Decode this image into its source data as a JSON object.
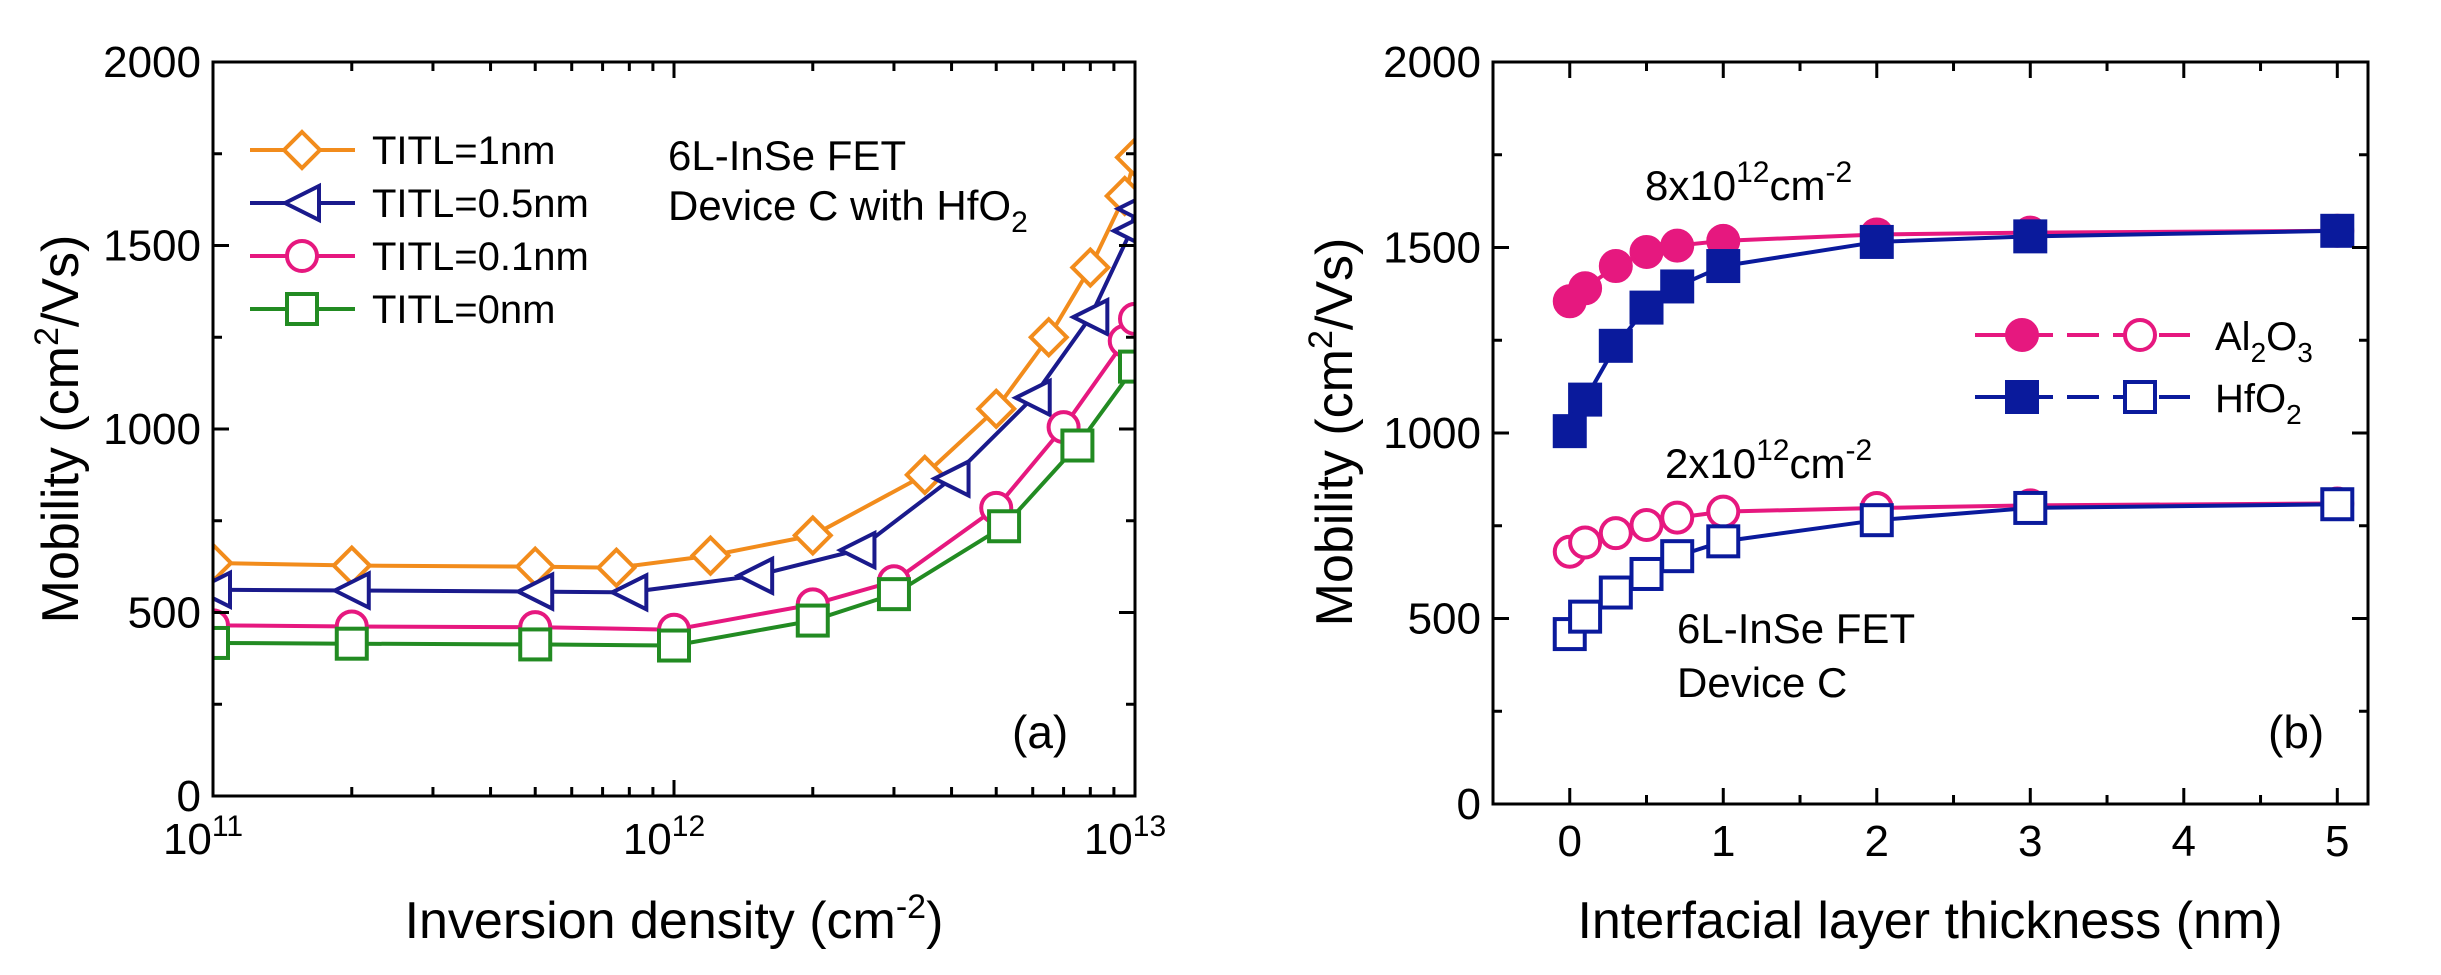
{
  "chart_data": [
    {
      "id": "panel-a",
      "type": "line",
      "x_scale": "log",
      "panel_label": "(a)",
      "xlabel": "Inversion density (cm",
      "xlabel_sup": "-2",
      "xlabel_tail": ")",
      "ylabel": "Mobility (cm",
      "ylabel_sup": "2",
      "ylabel_tail": "/Vs)",
      "xlim": [
        100000000000.0,
        10000000000000.0
      ],
      "ylim": [
        0,
        2000
      ],
      "x_ticks": [
        {
          "value": 100000000000.0,
          "base": "10",
          "exp": "11"
        },
        {
          "value": 1000000000000.0,
          "base": "10",
          "exp": "12"
        },
        {
          "value": 10000000000000.0,
          "base": "10",
          "exp": "13"
        }
      ],
      "y_ticks": [
        "0",
        "500",
        "1000",
        "1500",
        "2000"
      ],
      "annotation_line1": "6L-InSe FET",
      "annotation_line2": "Device C with HfO",
      "annotation_line2_sub": "2",
      "series": [
        {
          "name": "TITL=1nm",
          "color": "#F28C1C",
          "marker": "diamond",
          "filled": false,
          "x": [
            100000000000.0,
            200000000000.0,
            500000000000.0,
            750000000000.0,
            1200000000000.0,
            2000000000000.0,
            3500000000000.0,
            5000000000000.0,
            6500000000000.0,
            8000000000000.0,
            9500000000000.0,
            10000000000000.0
          ],
          "y": [
            635,
            628,
            625,
            622,
            655,
            710,
            875,
            1055,
            1250,
            1440,
            1635,
            1740
          ]
        },
        {
          "name": "TITL=0.5nm",
          "color": "#1A1A8C",
          "marker": "triangle-left",
          "filled": false,
          "x": [
            100000000000.0,
            200000000000.0,
            500000000000.0,
            800000000000.0,
            1500000000000.0,
            2500000000000.0,
            4000000000000.0,
            6000000000000.0,
            8000000000000.0,
            9800000000000.0,
            10000000000000.0
          ],
          "y": [
            562,
            560,
            557,
            555,
            600,
            670,
            865,
            1085,
            1305,
            1540,
            1600
          ]
        },
        {
          "name": "TITL=0.1nm",
          "color": "#E6187F",
          "marker": "circle",
          "filled": false,
          "x": [
            100000000000.0,
            200000000000.0,
            500000000000.0,
            1000000000000.0,
            2000000000000.0,
            3000000000000.0,
            5000000000000.0,
            7000000000000.0,
            9500000000000.0,
            10000000000000.0
          ],
          "y": [
            465,
            462,
            460,
            453,
            522,
            585,
            785,
            1005,
            1240,
            1300
          ]
        },
        {
          "name": "TITL=0nm",
          "color": "#228B22",
          "marker": "square",
          "filled": false,
          "x": [
            100000000000.0,
            200000000000.0,
            500000000000.0,
            1000000000000.0,
            2000000000000.0,
            3000000000000.0,
            5200000000000.0,
            7500000000000.0,
            10000000000000.0
          ],
          "y": [
            417,
            415,
            413,
            410,
            478,
            550,
            735,
            955,
            1170
          ]
        }
      ]
    },
    {
      "id": "panel-b",
      "type": "line",
      "x_scale": "linear",
      "panel_label": "(b)",
      "xlabel": "Interfacial layer thickness (nm)",
      "ylabel": "Mobility (cm",
      "ylabel_sup": "2",
      "ylabel_tail": "/Vs)",
      "xlim": [
        -0.5,
        5.2
      ],
      "ylim": [
        0,
        2000
      ],
      "x_ticks": [
        "0",
        "1",
        "2",
        "3",
        "4",
        "5"
      ],
      "y_ticks": [
        "0",
        "500",
        "1000",
        "1500",
        "2000"
      ],
      "annotation_high_base": "8x10",
      "annotation_high_exp": "12",
      "annotation_high_unit": "cm",
      "annotation_high_unit_exp": "-2",
      "annotation_low_base": "2x10",
      "annotation_low_exp": "12",
      "annotation_low_unit": "cm",
      "annotation_low_unit_exp": "-2",
      "annotation_device_line1": "6L-InSe FET",
      "annotation_device_line2": "Device C",
      "legend": [
        {
          "text": "Al",
          "sub1": "2",
          "mid": "O",
          "sub2": "3",
          "color": "#E6187F",
          "marker": "circle"
        },
        {
          "text": "HfO",
          "sub1": "2",
          "mid": "",
          "sub2": "",
          "color": "#0A1A9C",
          "marker": "square"
        }
      ],
      "series": [
        {
          "name": "Al2O3 8x10^12",
          "color": "#E6187F",
          "marker": "circle",
          "filled": true,
          "x": [
            0,
            0.1,
            0.3,
            0.5,
            0.7,
            1,
            2,
            3,
            5
          ],
          "y": [
            1355,
            1390,
            1450,
            1488,
            1505,
            1518,
            1535,
            1540,
            1545
          ]
        },
        {
          "name": "HfO2 8x10^12",
          "color": "#0A1A9C",
          "marker": "square",
          "filled": true,
          "x": [
            0,
            0.1,
            0.3,
            0.5,
            0.7,
            1,
            2,
            3,
            5
          ],
          "y": [
            1005,
            1090,
            1235,
            1338,
            1395,
            1450,
            1515,
            1530,
            1545
          ]
        },
        {
          "name": "Al2O3 2x10^12",
          "color": "#E6187F",
          "marker": "circle",
          "filled": false,
          "x": [
            0,
            0.1,
            0.3,
            0.5,
            0.7,
            1,
            2,
            3,
            5
          ],
          "y": [
            680,
            705,
            730,
            752,
            772,
            788,
            798,
            805,
            810
          ]
        },
        {
          "name": "HfO2 2x10^12",
          "color": "#0A1A9C",
          "marker": "square",
          "filled": false,
          "x": [
            0,
            0.1,
            0.3,
            0.5,
            0.7,
            1,
            2,
            3,
            5
          ],
          "y": [
            458,
            505,
            570,
            620,
            668,
            708,
            765,
            798,
            808
          ]
        }
      ]
    }
  ]
}
